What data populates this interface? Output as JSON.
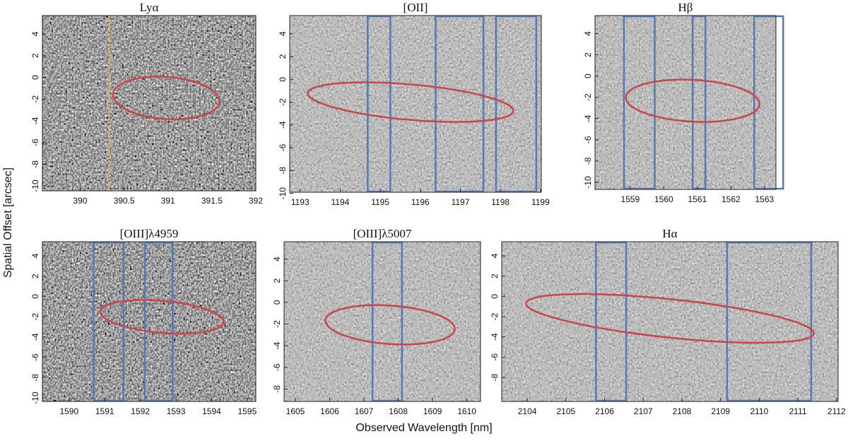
{
  "chart_data": {
    "type": "spectra-panels",
    "x_label": "Observed Wavelength [nm]",
    "y_label": "Spatial Offset [arcsec]",
    "panels": [
      {
        "title": "Lyα",
        "xlim": [
          389.57,
          392.0
        ],
        "xticks": [
          390,
          390.5,
          391,
          391.5,
          392
        ],
        "ylim": [
          -10.46,
          5.7
        ],
        "yticks": [
          -10,
          -8,
          -6,
          -4,
          -2,
          0,
          2,
          4
        ],
        "marker_line": 390.33
      },
      {
        "title": "[OII]",
        "xlim": [
          1192.74,
          1199.02
        ],
        "xticks": [
          1193,
          1194,
          1195,
          1196,
          1197,
          1198,
          1199
        ],
        "ylim": [
          -9.9,
          5.6
        ],
        "yticks": [
          -10,
          -8,
          -6,
          -4,
          -2,
          0,
          2,
          4
        ]
      },
      {
        "title": "Hβ",
        "xlim": [
          1557.95,
          1563.34
        ],
        "xticks": [
          1559,
          1560,
          1561,
          1562,
          1563
        ],
        "ylim": [
          -10.67,
          5.7
        ],
        "yticks": [
          -10,
          -8,
          -6,
          -4,
          -2,
          0,
          2,
          4
        ]
      },
      {
        "title": "[OIII]λ4959",
        "xlim": [
          1589.25,
          1595.24
        ],
        "xticks": [
          1590,
          1591,
          1592,
          1593,
          1594,
          1595
        ],
        "ylim": [
          -10.35,
          5.39
        ],
        "yticks": [
          -10,
          -8,
          -6,
          -4,
          -2,
          0,
          2,
          4
        ]
      },
      {
        "title": "[OIII]λ5007",
        "xlim": [
          1604.67,
          1610.4
        ],
        "xticks": [
          1605,
          1606,
          1607,
          1608,
          1609,
          1610
        ],
        "ylim": [
          -9.15,
          5.6
        ],
        "yticks": [
          -8,
          -6,
          -4,
          -2,
          0,
          2,
          4
        ]
      },
      {
        "title": "Hα",
        "xlim": [
          2103.34,
          2112.04
        ],
        "xticks": [
          2104,
          2105,
          2106,
          2107,
          2108,
          2109,
          2110,
          2111,
          2112
        ],
        "ylim": [
          -10.37,
          5.39
        ],
        "yticks": [
          -8,
          -6,
          -4,
          -2,
          0,
          2,
          4
        ]
      }
    ]
  }
}
